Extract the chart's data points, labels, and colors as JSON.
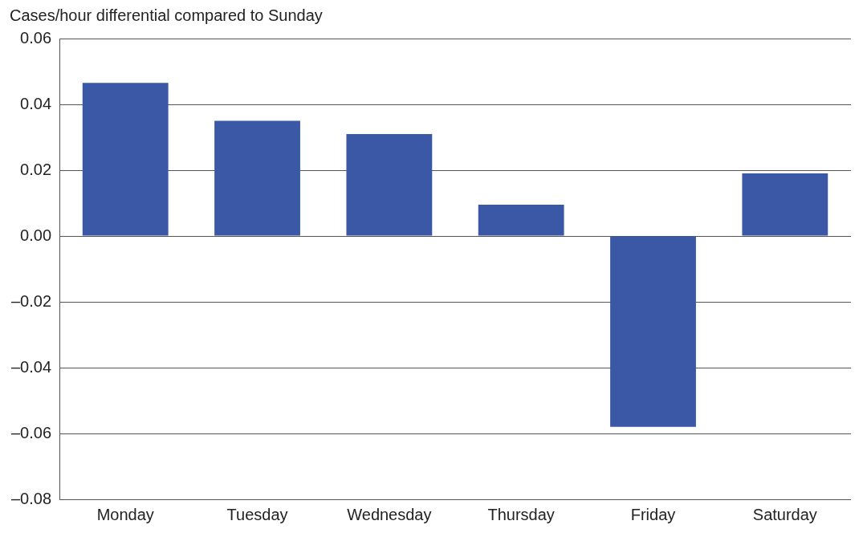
{
  "chart_data": {
    "type": "bar",
    "ylabel": "Cases/hour differential compared to Sunday",
    "categories": [
      "Monday",
      "Tuesday",
      "Wednesday",
      "Thursday",
      "Friday",
      "Saturday"
    ],
    "values": [
      0.0465,
      0.035,
      0.031,
      0.0095,
      -0.058,
      0.019
    ],
    "color": "#3b58a6",
    "ylim": [
      -0.08,
      0.06
    ],
    "yticks": [
      {
        "value": -0.08,
        "label": "–0.08"
      },
      {
        "value": -0.06,
        "label": "–0.06"
      },
      {
        "value": -0.04,
        "label": "–0.04"
      },
      {
        "value": -0.02,
        "label": "–0.02"
      },
      {
        "value": 0,
        "label": "0.00"
      },
      {
        "value": 0.02,
        "label": "0.02"
      },
      {
        "value": 0.04,
        "label": "0.04"
      },
      {
        "value": 0.06,
        "label": "0.06"
      }
    ],
    "grid": "y"
  }
}
